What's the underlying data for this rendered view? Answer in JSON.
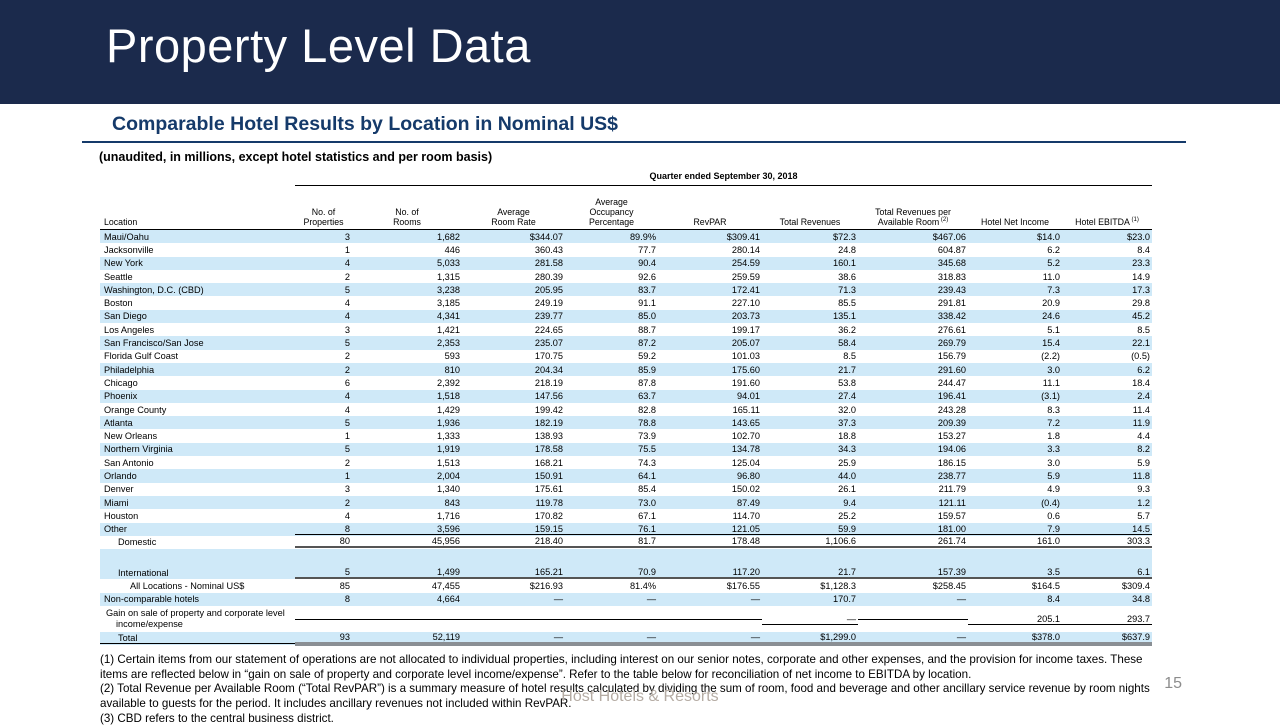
{
  "colors": {
    "navy": "#1b2a4c",
    "navy2": "#153a6a",
    "row_blue": "#cfe9f8",
    "rule_gray": "#8a8f94"
  },
  "slide": {
    "title": "Property Level Data",
    "section_title": "Comparable Hotel Results by Location in Nominal US$",
    "unaudited_note": "(unaudited, in millions, except hotel statistics  and per room basis)",
    "page_number": "15",
    "watermark": "Host Hotels & Resorts"
  },
  "table": {
    "period_header": "Quarter ended September 30, 2018",
    "columns": [
      {
        "label": "Location"
      },
      {
        "label": "No. of\nProperties"
      },
      {
        "label": "No. of\nRooms"
      },
      {
        "label": "Average\nRoom Rate"
      },
      {
        "label": "Average\nOccupancy\nPercentage"
      },
      {
        "label": "RevPAR"
      },
      {
        "label": "Total Revenues"
      },
      {
        "label": "Total Revenues per\nAvailable Room",
        "sup": "(2)"
      },
      {
        "label": "Hotel Net Income"
      },
      {
        "label": "Hotel EBITDA",
        "sup": "(1)"
      }
    ],
    "rows": [
      {
        "label": "Maui/Oahu",
        "shaded": true,
        "cells": [
          "3",
          "1,682",
          "$344.07",
          "89.9%",
          "$309.41",
          "$72.3",
          "$467.06",
          "$14.0",
          "$23.0"
        ]
      },
      {
        "label": "Jacksonville",
        "shaded": false,
        "cells": [
          "1",
          "446",
          "360.43",
          "77.7",
          "280.14",
          "24.8",
          "604.87",
          "6.2",
          "8.4"
        ]
      },
      {
        "label": "New York",
        "shaded": true,
        "cells": [
          "4",
          "5,033",
          "281.58",
          "90.4",
          "254.59",
          "160.1",
          "345.68",
          "5.2",
          "23.3"
        ]
      },
      {
        "label": "Seattle",
        "shaded": false,
        "cells": [
          "2",
          "1,315",
          "280.39",
          "92.6",
          "259.59",
          "38.6",
          "318.83",
          "11.0",
          "14.9"
        ]
      },
      {
        "label": "Washington, D.C. (CBD)",
        "shaded": true,
        "cells": [
          "5",
          "3,238",
          "205.95",
          "83.7",
          "172.41",
          "71.3",
          "239.43",
          "7.3",
          "17.3"
        ]
      },
      {
        "label": "Boston",
        "shaded": false,
        "cells": [
          "4",
          "3,185",
          "249.19",
          "91.1",
          "227.10",
          "85.5",
          "291.81",
          "20.9",
          "29.8"
        ]
      },
      {
        "label": "San Diego",
        "shaded": true,
        "cells": [
          "4",
          "4,341",
          "239.77",
          "85.0",
          "203.73",
          "135.1",
          "338.42",
          "24.6",
          "45.2"
        ]
      },
      {
        "label": "Los Angeles",
        "shaded": false,
        "cells": [
          "3",
          "1,421",
          "224.65",
          "88.7",
          "199.17",
          "36.2",
          "276.61",
          "5.1",
          "8.5"
        ]
      },
      {
        "label": "San Francisco/San Jose",
        "shaded": true,
        "cells": [
          "5",
          "2,353",
          "235.07",
          "87.2",
          "205.07",
          "58.4",
          "269.79",
          "15.4",
          "22.1"
        ]
      },
      {
        "label": "Florida Gulf Coast",
        "shaded": false,
        "cells": [
          "2",
          "593",
          "170.75",
          "59.2",
          "101.03",
          "8.5",
          "156.79",
          "(2.2)",
          "(0.5)"
        ]
      },
      {
        "label": "Philadelphia",
        "shaded": true,
        "cells": [
          "2",
          "810",
          "204.34",
          "85.9",
          "175.60",
          "21.7",
          "291.60",
          "3.0",
          "6.2"
        ]
      },
      {
        "label": "Chicago",
        "shaded": false,
        "cells": [
          "6",
          "2,392",
          "218.19",
          "87.8",
          "191.60",
          "53.8",
          "244.47",
          "11.1",
          "18.4"
        ]
      },
      {
        "label": "Phoenix",
        "shaded": true,
        "cells": [
          "4",
          "1,518",
          "147.56",
          "63.7",
          "94.01",
          "27.4",
          "196.41",
          "(3.1)",
          "2.4"
        ]
      },
      {
        "label": "Orange County",
        "shaded": false,
        "cells": [
          "4",
          "1,429",
          "199.42",
          "82.8",
          "165.11",
          "32.0",
          "243.28",
          "8.3",
          "11.4"
        ]
      },
      {
        "label": "Atlanta",
        "shaded": true,
        "cells": [
          "5",
          "1,936",
          "182.19",
          "78.8",
          "143.65",
          "37.3",
          "209.39",
          "7.2",
          "11.9"
        ]
      },
      {
        "label": "New Orleans",
        "shaded": false,
        "cells": [
          "1",
          "1,333",
          "138.93",
          "73.9",
          "102.70",
          "18.8",
          "153.27",
          "1.8",
          "4.4"
        ]
      },
      {
        "label": "Northern Virginia",
        "shaded": true,
        "cells": [
          "5",
          "1,919",
          "178.58",
          "75.5",
          "134.78",
          "34.3",
          "194.06",
          "3.3",
          "8.2"
        ]
      },
      {
        "label": "San Antonio",
        "shaded": false,
        "cells": [
          "2",
          "1,513",
          "168.21",
          "74.3",
          "125.04",
          "25.9",
          "186.15",
          "3.0",
          "5.9"
        ]
      },
      {
        "label": "Orlando",
        "shaded": true,
        "cells": [
          "1",
          "2,004",
          "150.91",
          "64.1",
          "96.80",
          "44.0",
          "238.77",
          "5.9",
          "11.8"
        ]
      },
      {
        "label": "Denver",
        "shaded": false,
        "cells": [
          "3",
          "1,340",
          "175.61",
          "85.4",
          "150.02",
          "26.1",
          "211.79",
          "4.9",
          "9.3"
        ]
      },
      {
        "label": "Miami",
        "shaded": true,
        "cells": [
          "2",
          "843",
          "119.78",
          "73.0",
          "87.49",
          "9.4",
          "121.11",
          "(0.4)",
          "1.2"
        ]
      },
      {
        "label": "Houston",
        "shaded": false,
        "cells": [
          "4",
          "1,716",
          "170.82",
          "67.1",
          "114.70",
          "25.2",
          "159.57",
          "0.6",
          "5.7"
        ]
      },
      {
        "label": "Other",
        "shaded": true,
        "rule": "thin",
        "cells": [
          "8",
          "3,596",
          "159.15",
          "76.1",
          "121.05",
          "59.9",
          "181.00",
          "7.9",
          "14.5"
        ]
      },
      {
        "label": "Domestic",
        "indent": 1,
        "shaded": false,
        "rule": "thick",
        "cells": [
          "80",
          "45,956",
          "218.40",
          "81.7",
          "178.48",
          "1,106.6",
          "261.74",
          "161.0",
          "303.3"
        ]
      },
      {
        "label": "",
        "blank": true,
        "shaded": true,
        "cells": [
          "",
          "",
          "",
          "",
          "",
          "",
          "",
          "",
          ""
        ]
      },
      {
        "label": "International",
        "indent": 1,
        "shaded": true,
        "rule": "thick",
        "cells": [
          "5",
          "1,499",
          "165.21",
          "70.9",
          "117.20",
          "21.7",
          "157.39",
          "3.5",
          "6.1"
        ]
      },
      {
        "label": "All Locations - Nominal US$",
        "indent": 2,
        "shaded": false,
        "cells": [
          "85",
          "47,455",
          "$216.93",
          "81.4%",
          "$176.55",
          "$1,128.3",
          "$258.45",
          "$164.5",
          "$309.4"
        ]
      },
      {
        "label": "Non-comparable hotels",
        "shaded": true,
        "cells": [
          "8",
          "4,664",
          "—",
          "—",
          "—",
          "170.7",
          "—",
          "8.4",
          "34.8"
        ]
      },
      {
        "label": "Gain on sale of property and corporate level income/expense",
        "hang": true,
        "tall": true,
        "shaded": false,
        "rule": "thin",
        "cells": [
          "",
          "",
          "",
          "",
          "",
          "—",
          "",
          "205.1",
          "293.7"
        ]
      },
      {
        "label": "Total",
        "indent": 1,
        "shaded": true,
        "rule": "total",
        "cells": [
          "93",
          "52,119",
          "—",
          "—",
          "—",
          "$1,299.0",
          "—",
          "$378.0",
          "$637.9"
        ]
      }
    ]
  },
  "footnotes": [
    "(1) Certain items from our statement of operations are not allocated to individual properties, including interest on our senior notes, corporate and other expenses, and the provision for income taxes. These items are reflected below in “gain on sale of property and corporate level income/expense”. Refer to the table below for reconciliation of net income to EBITDA  by location.",
    "(2) Total Revenue per Available Room (“Total RevPAR”) is a summary measure of hotel results calculated by dividing the sum of room, food and beverage and other ancillary service revenue by room nights available to guests for the period. It includes ancillary revenues not included within RevPAR.",
    "(3) CBD refers to the central business district."
  ]
}
